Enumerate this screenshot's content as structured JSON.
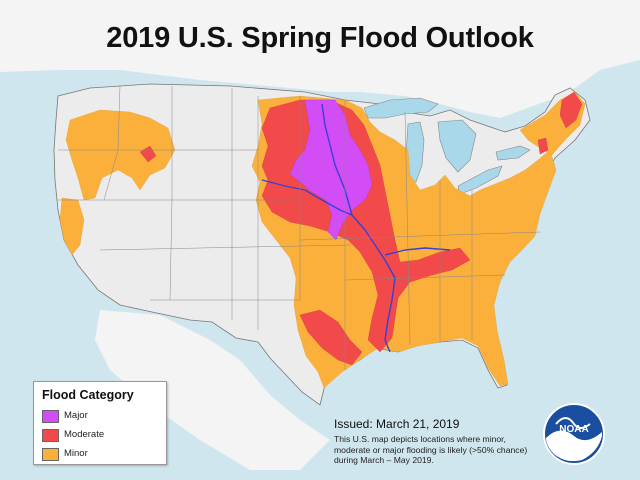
{
  "title": "2019 U.S. Spring Flood Outlook",
  "legend": {
    "title": "Flood Category",
    "items": [
      {
        "label": "Major",
        "color": "#d24df5"
      },
      {
        "label": "Moderate",
        "color": "#f2494a"
      },
      {
        "label": "Minor",
        "color": "#fbb03b"
      }
    ]
  },
  "issued": "Issued:  March 21, 2019",
  "description": "This U.S. map depicts locations where minor, moderate or major flooding is likely (>50% chance) during March – May 2019.",
  "logo_text": "NOAA",
  "colors": {
    "ocean": "#cfe6ee",
    "land": "#ececec",
    "lakes": "#a8d8ea",
    "major": "#d24df5",
    "moderate": "#f2494a",
    "minor": "#fbb03b",
    "river": "#3b3fd6"
  }
}
